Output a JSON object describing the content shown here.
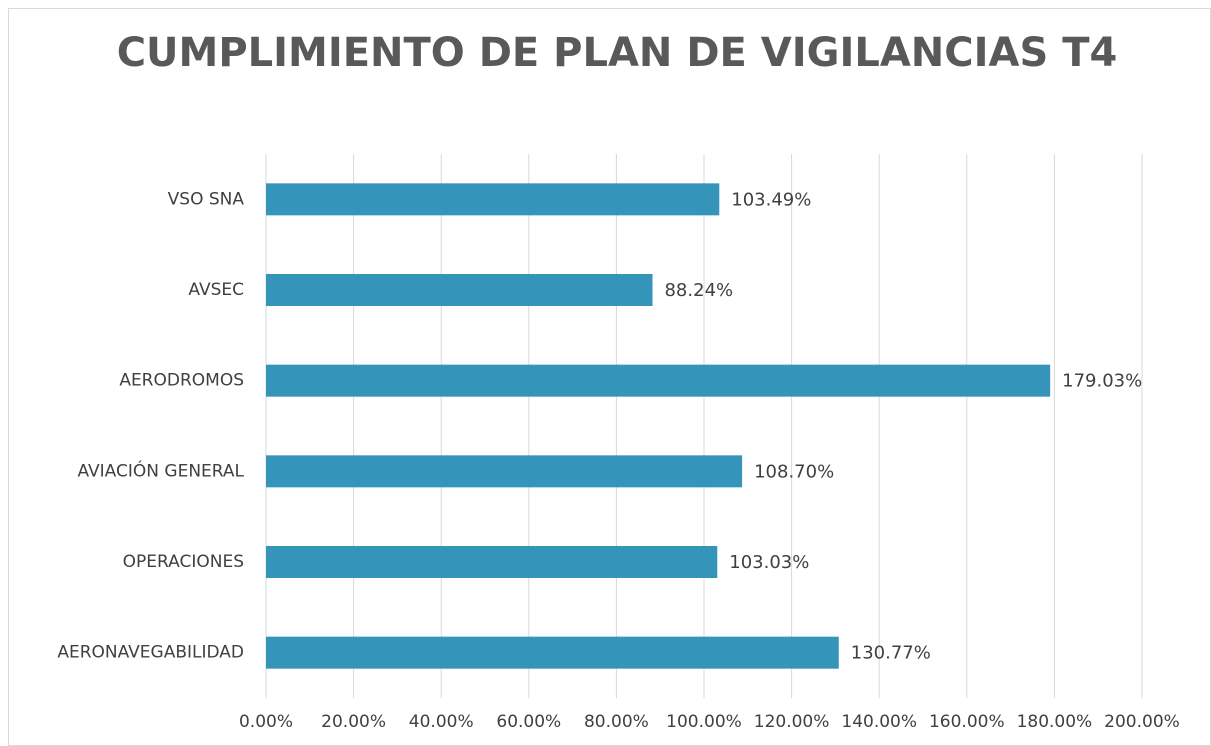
{
  "chart_data": {
    "type": "bar",
    "orientation": "horizontal",
    "title": "CUMPLIMIENTO DE PLAN DE VIGILANCIAS T4",
    "categories": [
      "VSO SNA",
      "AVSEC",
      "AERODROMOS",
      "AVIACIÓN GENERAL",
      "OPERACIONES",
      "AERONAVEGABILIDAD"
    ],
    "values": [
      103.49,
      88.24,
      179.03,
      108.7,
      103.03,
      130.77
    ],
    "value_labels": [
      "103.49%",
      "88.24%",
      "179.03%",
      "108.70%",
      "103.03%",
      "130.77%"
    ],
    "color": "#3494ba",
    "xlim": [
      0,
      200
    ],
    "xticks": [
      {
        "value": 0,
        "label": "0.00%"
      },
      {
        "value": 20,
        "label": "20.00%"
      },
      {
        "value": 40,
        "label": "40.00%"
      },
      {
        "value": 60,
        "label": "60.00%"
      },
      {
        "value": 80,
        "label": "80.00%"
      },
      {
        "value": 100,
        "label": "100.00%"
      },
      {
        "value": 120,
        "label": "120.00%"
      },
      {
        "value": 140,
        "label": "140.00%"
      },
      {
        "value": 160,
        "label": "160.00%"
      },
      {
        "value": 180,
        "label": "180.00%"
      },
      {
        "value": 200,
        "label": "200.00%"
      }
    ],
    "grid": true
  }
}
